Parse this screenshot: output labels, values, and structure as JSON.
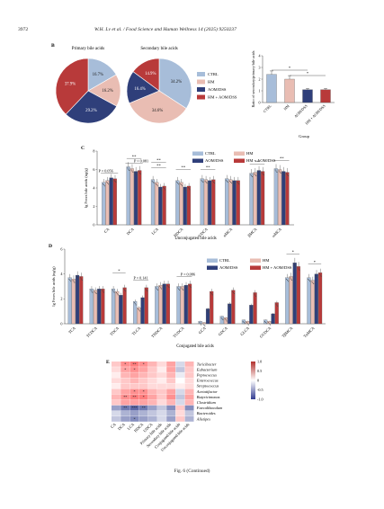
{
  "header": {
    "page_number": "3972",
    "running_title": "W.H. Lv et al. / Food Science and Human Wellness 14 (2025) 9250237"
  },
  "panel_b": {
    "letter": "B",
    "pie_titles": [
      "Primary bile acids",
      "Secondary bile acids"
    ],
    "pies": [
      {
        "slices": [
          {
            "group": "CTRL",
            "value": 16.7,
            "label": "16.7%",
            "color": "#a7bdd9"
          },
          {
            "group": "HM",
            "value": 16.2,
            "label": "16.2%",
            "color": "#e9bdb3"
          },
          {
            "group": "AOM/DSS",
            "value": 29.2,
            "label": "29.2%",
            "color": "#2f3f7a"
          },
          {
            "group": "HM + AOM/DSS",
            "value": 37.9,
            "label": "37.9%",
            "color": "#b83a3a"
          }
        ]
      },
      {
        "slices": [
          {
            "group": "CTRL",
            "value": 34.2,
            "label": "34.2%",
            "color": "#a7bdd9"
          },
          {
            "group": "HM",
            "value": 34.6,
            "label": "34.6%",
            "color": "#e9bdb3"
          },
          {
            "group": "AOM/DSS",
            "value": 16.4,
            "label": "16.4%",
            "color": "#2f3f7a"
          },
          {
            "group": "HM + AOM/DSS",
            "value": 14.9,
            "label": "14.9%",
            "color": "#b83a3a"
          }
        ]
      }
    ],
    "legend": [
      "CTRL",
      "HM",
      "AOM/DSS",
      "HM + AOM/DSS"
    ],
    "ratio_chart": {
      "ylabel": "Ratio of secondary/primary bile acids",
      "xlabel": "Group",
      "categories": [
        "CTRL",
        "HM",
        "AOM/DSS",
        "HM + AOM/DSS"
      ],
      "values": [
        2.4,
        2.0,
        1.1,
        1.1
      ],
      "errors": [
        0.3,
        0.3,
        0.1,
        0.1
      ],
      "ylim": [
        0,
        4
      ],
      "yticks": [
        "0",
        "1",
        "2",
        "3",
        "4"
      ],
      "signif": [
        "*",
        "*"
      ]
    }
  },
  "chart_data": [
    {
      "type": "bar",
      "panel": "C",
      "ylabel": "lg Feces bile acids (ng/g)",
      "xlabel": "Unconjugated bile acids",
      "ylim": [
        0,
        8
      ],
      "yticks": [
        "0",
        "2",
        "4",
        "6",
        "8"
      ],
      "categories": [
        "CA",
        "DCA",
        "LCA",
        "HDCA",
        "UDCA",
        "αMCA",
        "βMCA",
        "ωMCA"
      ],
      "series": [
        {
          "name": "CTRL",
          "color": "#a7bdd9",
          "values": [
            4.6,
            6.3,
            4.9,
            4.8,
            5.0,
            5.0,
            5.6,
            6.1
          ]
        },
        {
          "name": "HM",
          "color": "#e9bdb3",
          "values": [
            4.8,
            6.1,
            4.6,
            4.6,
            4.9,
            4.9,
            5.7,
            6.0
          ]
        },
        {
          "name": "AOM/DSS",
          "color": "#2f3f7a",
          "values": [
            5.1,
            5.8,
            4.1,
            4.1,
            4.8,
            4.8,
            5.9,
            5.8
          ]
        },
        {
          "name": "HM + AOM/DSS",
          "color": "#b83a3a",
          "values": [
            5.0,
            5.9,
            4.2,
            4.2,
            4.9,
            4.8,
            5.8,
            5.7
          ]
        }
      ],
      "annotations": [
        "P = 0.056",
        "P = 0.081"
      ]
    },
    {
      "type": "bar",
      "panel": "D",
      "ylabel": "lg Feces bile acids (ng/g)",
      "xlabel": "Conjugated bile acids",
      "ylim": [
        0,
        6
      ],
      "yticks": [
        "0",
        "2",
        "4",
        "6"
      ],
      "categories": [
        "TCA",
        "TCDCA",
        "TDCA",
        "TLCA",
        "THDCA",
        "TUDCA",
        "GCA",
        "GDCA",
        "GLCA",
        "GUDCA",
        "TβMCA",
        "TαMCA"
      ],
      "series": [
        {
          "name": "CTRL",
          "color": "#a7bdd9",
          "values": [
            3.7,
            2.8,
            2.8,
            1.8,
            3.0,
            3.0,
            0.2,
            0.6,
            0.3,
            0.3,
            3.7,
            3.7
          ]
        },
        {
          "name": "HM",
          "color": "#e9bdb3",
          "values": [
            3.6,
            2.7,
            2.6,
            1.3,
            3.1,
            3.0,
            0.1,
            0.5,
            0.2,
            0.2,
            3.8,
            3.5
          ]
        },
        {
          "name": "AOM/DSS",
          "color": "#2f3f7a",
          "values": [
            3.9,
            2.8,
            2.3,
            2.1,
            3.2,
            3.1,
            1.2,
            1.6,
            1.5,
            0.8,
            4.9,
            4.0
          ]
        },
        {
          "name": "HM + AOM/DSS",
          "color": "#b83a3a",
          "values": [
            3.8,
            2.8,
            2.9,
            2.9,
            3.2,
            3.2,
            2.6,
            2.7,
            2.5,
            1.7,
            4.6,
            4.1
          ]
        }
      ],
      "annotations": [
        "P = 0.141",
        "P = 0.086"
      ]
    }
  ],
  "panel_e": {
    "letter": "E",
    "rows": [
      "Turicibacter",
      "Eubacterium",
      "Peptococcus",
      "Enterococcus",
      "Streptococcus",
      "Acetatifactor",
      "Butyricimonas",
      "Clostridium",
      "Faecalibaculum",
      "Bacteroides",
      "Alistipes"
    ],
    "cols": [
      "CA",
      "DCA",
      "LCA",
      "HDCA",
      "UDCA",
      "Primary bile acids",
      "Secondary bile acids",
      "Conjugated bile acids",
      "Unconjugated bile acids"
    ],
    "legend_ticks": [
      "1.0",
      "0.5",
      "0",
      "-0.5",
      "-1.0"
    ],
    "values": [
      [
        0.3,
        0.6,
        0.7,
        0.6,
        0.4,
        0.2,
        0.5,
        -0.2,
        0.4
      ],
      [
        0.2,
        0.5,
        0.6,
        0.5,
        0.3,
        0.1,
        0.5,
        -0.3,
        0.3
      ],
      [
        0.1,
        0.4,
        0.5,
        0.4,
        0.3,
        0.2,
        0.4,
        -0.1,
        0.3
      ],
      [
        0.2,
        0.3,
        0.4,
        0.3,
        0.2,
        0.1,
        0.3,
        0.0,
        0.2
      ],
      [
        0.1,
        0.3,
        0.3,
        0.3,
        0.2,
        0.2,
        0.2,
        0.1,
        0.2
      ],
      [
        0.3,
        0.5,
        0.6,
        0.6,
        0.4,
        0.3,
        0.5,
        -0.2,
        0.4
      ],
      [
        0.4,
        0.6,
        0.7,
        0.7,
        0.5,
        0.3,
        0.6,
        -0.3,
        0.5
      ],
      [
        0.3,
        0.5,
        0.5,
        0.5,
        0.4,
        0.2,
        0.4,
        -0.2,
        0.4
      ],
      [
        -0.5,
        -0.7,
        -0.8,
        -0.7,
        -0.5,
        -0.3,
        -0.6,
        0.3,
        -0.6
      ],
      [
        -0.2,
        -0.4,
        -0.5,
        -0.4,
        -0.3,
        -0.2,
        -0.4,
        0.2,
        -0.3
      ],
      [
        -0.3,
        -0.5,
        -0.6,
        -0.5,
        -0.4,
        -0.2,
        -0.5,
        0.3,
        -0.4
      ]
    ],
    "stars": [
      [
        0,
        1,
        "*"
      ],
      [
        0,
        2,
        "**"
      ],
      [
        0,
        3,
        "*"
      ],
      [
        1,
        1,
        "*"
      ],
      [
        1,
        2,
        "*"
      ],
      [
        5,
        2,
        "*"
      ],
      [
        5,
        3,
        "*"
      ],
      [
        6,
        1,
        "**"
      ],
      [
        6,
        2,
        "**"
      ],
      [
        6,
        3,
        "*"
      ],
      [
        8,
        1,
        "**"
      ],
      [
        8,
        2,
        "***"
      ],
      [
        8,
        3,
        "**"
      ],
      [
        10,
        2,
        "*"
      ]
    ]
  },
  "caption": "Fig. 6 (Continued)"
}
